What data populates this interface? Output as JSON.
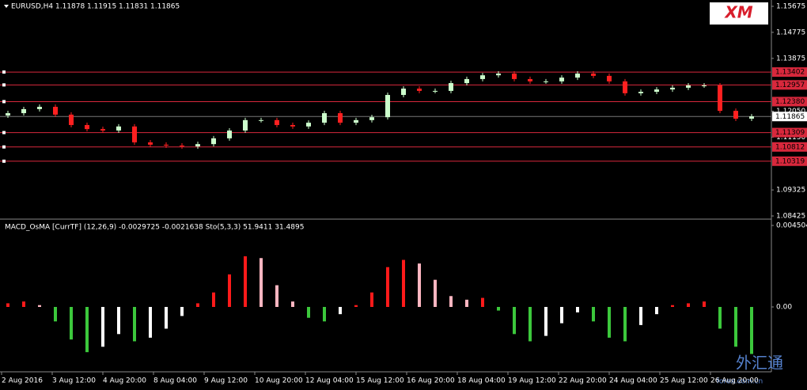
{
  "chart_data": [
    {
      "type": "candlestick",
      "title": "EURUSD,H4",
      "quote": [
        1.11878,
        1.11915,
        1.11831,
        1.11865
      ],
      "open": [
        1.119,
        1.1198,
        1.1212,
        1.122,
        1.1193,
        1.1157,
        1.1143,
        1.1138,
        1.1152,
        1.1097,
        1.1089,
        1.1086,
        1.1083,
        1.1091,
        1.1111,
        1.1138,
        1.1174,
        1.1174,
        1.1157,
        1.1152,
        1.1165,
        1.1198,
        1.1165,
        1.1174,
        1.1184,
        1.1261,
        1.1283,
        1.1275,
        1.1275,
        1.1302,
        1.1316,
        1.1329,
        1.1335,
        1.1316,
        1.1308,
        1.1308,
        1.1321,
        1.1335,
        1.1327,
        1.1308,
        1.1267,
        1.1272,
        1.128,
        1.1286,
        1.1294,
        1.1294,
        1.1206,
        1.1179
      ],
      "close": [
        1.1198,
        1.1212,
        1.122,
        1.1193,
        1.1157,
        1.1143,
        1.1138,
        1.1152,
        1.1097,
        1.1089,
        1.1086,
        1.1083,
        1.1091,
        1.1111,
        1.1138,
        1.1174,
        1.1174,
        1.1157,
        1.1152,
        1.1165,
        1.1198,
        1.1165,
        1.1174,
        1.1184,
        1.1261,
        1.1283,
        1.1275,
        1.1275,
        1.1302,
        1.1316,
        1.1329,
        1.1335,
        1.1316,
        1.1308,
        1.1308,
        1.1321,
        1.1335,
        1.1327,
        1.1308,
        1.1267,
        1.1272,
        1.128,
        1.1286,
        1.1294,
        1.1294,
        1.1206,
        1.1179,
        1.1187
      ],
      "up_color": "#ccffcc",
      "down_color": "#ff2020",
      "ylim": [
        1.08425,
        1.15675
      ],
      "yticks": [
        1.15675,
        1.14775,
        1.13875,
        {
          "value": 1.1205,
          "label": "1.12050"
        },
        {
          "value": 1.1115,
          "label": "1.11150"
        },
        1.09325,
        1.08425
      ],
      "levels": [
        1.13402,
        1.12957,
        {
          "value": 1.1238,
          "label": "1.12380"
        },
        1.11309,
        1.10812,
        1.10319
      ],
      "level_color": "#d8283c",
      "last_price": 1.11865,
      "x_labels": [
        "2 Aug 2016",
        "3 Aug 12:00",
        "4 Aug 20:00",
        "8 Aug 04:00",
        "9 Aug 12:00",
        "10 Aug 20:00",
        "12 Aug 04:00",
        "15 Aug 12:00",
        "16 Aug 20:00",
        "18 Aug 04:00",
        "19 Aug 12:00",
        "22 Aug 20:00",
        "24 Aug 04:00",
        "25 Aug 12:00",
        "26 Aug 20:00"
      ]
    },
    {
      "type": "histogram",
      "title": "MACD_OsMA [CurrTF] (12,26,9) -0.0029725 -0.0021638  Sto(5,3,3) 51.9411 31.4895",
      "values": [
        0.0002,
        0.0003,
        0.0001,
        -0.0008,
        -0.0018,
        -0.0025,
        -0.0022,
        -0.0015,
        -0.0019,
        -0.0017,
        -0.0012,
        -0.0005,
        0.0002,
        0.0008,
        0.0018,
        0.0028,
        0.0027,
        0.0012,
        0.0003,
        -0.0006,
        -0.0008,
        -0.0004,
        0.0001,
        0.0008,
        0.0022,
        0.0026,
        0.0024,
        0.0015,
        0.0006,
        0.0004,
        0.0005,
        -0.0002,
        -0.0015,
        -0.0019,
        -0.0016,
        -0.0009,
        -0.0003,
        -0.0008,
        -0.0017,
        -0.0019,
        -0.001,
        -0.0004,
        0.0001,
        0.0002,
        0.0003,
        -0.0012,
        -0.0022,
        -0.0026
      ],
      "colors": [
        "#ff1a1a",
        "#ffb6c1",
        "#3cc83c",
        "#ffffff"
      ],
      "ylim": [
        -0.003586,
        0.004504
      ],
      "yticks": [
        0.004504,
        {
          "value": 0,
          "label": "0.00"
        }
      ]
    }
  ],
  "logo": "XM",
  "watermark": "外汇通",
  "watermark_url": "forex.com.cn"
}
